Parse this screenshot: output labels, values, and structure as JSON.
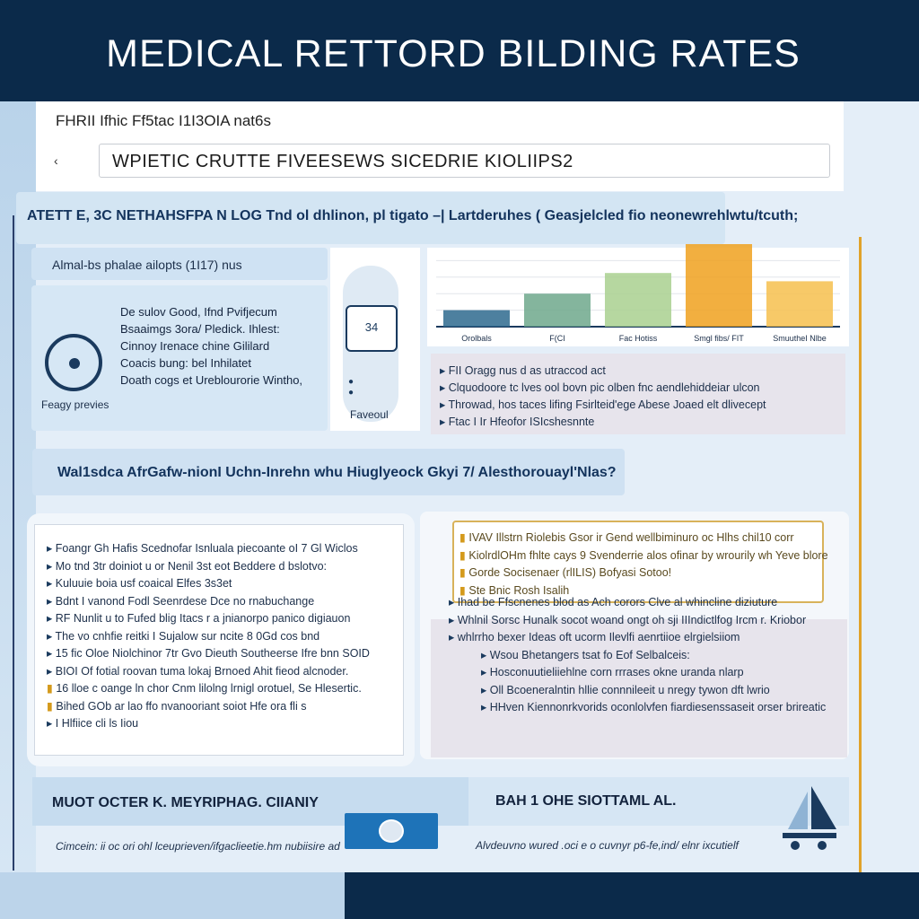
{
  "header": {
    "title": "MEDICAL RETTORD BILDING RATES"
  },
  "top": {
    "label": "FHRII Ifhic Ff5tac I1I3OIA nat6s",
    "field_value": "WPIETIC CRUTTE FIVEESEWS SICEDRIE KIOLIIPS2"
  },
  "banner": {
    "text": "ATETT E, 3C NETHAHSFPA N LOG Tnd ol dhlinon, pl tigato  –|  Lartderuhes  ( Geasjelcled fio neonewrehlwtu/tcuth;"
  },
  "card_a": {
    "text": "Almal-bs phalae ailopts (1I17) nus"
  },
  "card_b": {
    "lines": [
      "De sulov Good, Ifnd Pvifjecum",
      "Bsaaimgs 3ora/ Pledick. Ihlest:",
      "Cinnoy Irenace chine Gililard",
      "Coacis bung: bel Inhilatet",
      "Doath cogs et Ureblourorie Wintho,"
    ],
    "gauge_label": "Feagy previes"
  },
  "middle": {
    "badge": "34",
    "label": "Faveoul"
  },
  "chart_data": {
    "type": "bar",
    "categories": [
      "Orolbals",
      "F(CI",
      "Fac Hotiss",
      "Smgl fibs/ FIT",
      "SmuutheI Nlbe"
    ],
    "values": [
      20,
      40,
      65,
      100,
      55
    ],
    "title": "",
    "xlabel": "",
    "ylabel": "",
    "colors": [
      "#2e6a8e",
      "#6fa88c",
      "#a9d08f",
      "#f0a11e",
      "#f6c04d"
    ]
  },
  "notes": [
    "FII Oragg nus d as utraccod act",
    "Clquodoore tc lves ool bovn pic olben fnc aendlehiddeiar ulcon",
    "Throwad, hos taces lifing Fsirlteid'ege Abese Joaed elt dlivecept",
    "Ftac I Ir Hfeofor ISIcshesnnte"
  ],
  "strip": {
    "text": "Wal1sdca AfrGafw-nionI Uchn-Inrehn whu Hiuglyeock Gkyi 7/ Alesthorouayl'Nlas?"
  },
  "left_list": [
    "Foangr Gh Hafis Scednofar Isnluala piecoante oI 7 Gl Wiclos",
    "Mo tnd 3tr doiniot u or Nenil 3st eot Beddere d bslotvo:",
    "Kuluuie boia usf coaical Elfes 3s3et",
    "Bdnt I vanond Fodl Seenrdese Dce no rnabuchange",
    "RF Nunlit u to Fufed blig Itacs r a jnianorpo panico digiauon",
    "The vo cnhfie reitki I Sujalow sur ncite 8 0Gd cos bnd",
    "15 fic Oloe Niolchinor 7tr Gvo Dieuth Southeerse Ifre bnn SOID",
    "BIOI Of fotial roovan tuma lokaj Brnoed Ahit fieod alcnoder.",
    "16 lloe c oange ln chor Cnm lilolng lrnigl orotuel, Se Hlesertic.",
    "Bihed GOb ar lao ffo nvanooriant soiot Hfe ora fli s",
    "I Hlfiice cli ls Iiou"
  ],
  "highlight_list": [
    "IVAV Illstrn Riolebis Gsor ir Gend wellbiminuro oc Hlhs  chil10 corr",
    "KiolrdlOHm fhlte cays 9 Svenderrie alos ofinar by wrourily wh Yeve blore",
    "Gorde Socisenaer (rlILIS)                                         Bofyasi Sotoo!",
    "Ste Bnic Rosh Isalih"
  ],
  "right_list": [
    "Ihad be Ffscnenes blod as Ach corors Clve al whincline diziuture",
    "Whlnil Sorsc Hunalk socot woand ongt oh sji IIIndictlfog Ircm r. Kriobor",
    "whlrrho bexer Ideas oft ucorm Ilevlfi aenrtiioe elrgielsiiom",
    "Wsou Bhetangers tsat fo Eof Selbalceis:",
    "Hosconuutieliiehlne corn rrrases okne uranda nlarp",
    "Oll Bcoeneralntin hllie connnileeit u nregy tywon dft lwrio",
    "HHven Kiennonrkvorids oconlolvfen fiardiesenssaseit orser brireatic"
  ],
  "footer": {
    "left_title": "MUOT OCTER K. MEYRIPHAG. CIIANIY",
    "left_sub": "Cimcein: ii oc ori ohl lceuprieven/ifgaclieetie.hm nubiisire ad",
    "right_title": "BAH 1 OHE SIOTTAML AL.",
    "right_sub": "Alvdeuvno wured .oci e o cuvnyr p6-fe,ind/ elnr ixcutielf"
  }
}
